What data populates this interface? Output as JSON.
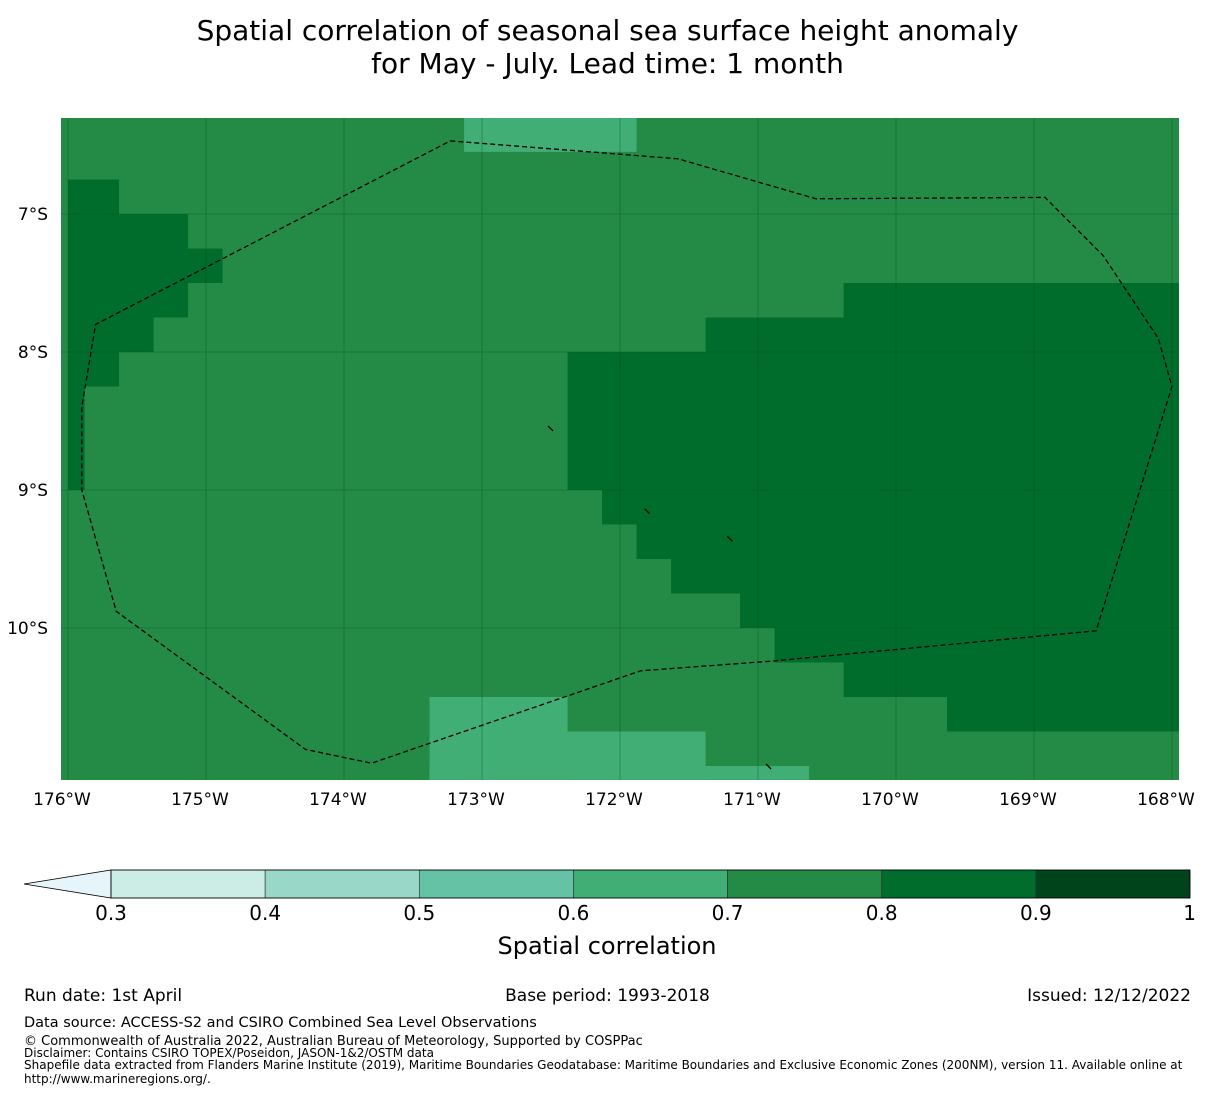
{
  "title_line1": "Spatial correlation of seasonal sea surface height anomaly",
  "title_line2": "for May - July. Lead time: 1 month",
  "map": {
    "lon_range": [
      -176,
      -167.9
    ],
    "lat_range": [
      -11.1,
      -6.3
    ],
    "lat_ticks": [
      {
        "value": -7,
        "label": "7°S"
      },
      {
        "value": -8,
        "label": "8°S"
      },
      {
        "value": -9,
        "label": "9°S"
      },
      {
        "value": -10,
        "label": "10°S"
      }
    ],
    "lon_ticks": [
      {
        "value": -176,
        "label": "176°W"
      },
      {
        "value": -175,
        "label": "175°W"
      },
      {
        "value": -174,
        "label": "174°W"
      },
      {
        "value": -173,
        "label": "173°W"
      },
      {
        "value": -172,
        "label": "172°W"
      },
      {
        "value": -171,
        "label": "171°W"
      },
      {
        "value": -170,
        "label": "170°W"
      },
      {
        "value": -169,
        "label": "169°W"
      },
      {
        "value": -168,
        "label": "168°W"
      }
    ],
    "gridlines": true,
    "background_value_class": "0.7-0.8",
    "regions": [
      {
        "class": "0.6-0.7",
        "lon": [
          -173.13,
          -171.88
        ],
        "lat": [
          -6.55,
          -6.3
        ]
      },
      {
        "class": "0.6-0.7",
        "lon": [
          -173.38,
          -172.38
        ],
        "lat": [
          -11.1,
          -10.5
        ]
      },
      {
        "class": "0.6-0.7",
        "lon": [
          -173.13,
          -171.38
        ],
        "lat": [
          -11.1,
          -10.75
        ]
      },
      {
        "class": "0.6-0.7",
        "lon": [
          -173.38,
          -170.63
        ],
        "lat": [
          -11.1,
          -11.0
        ]
      },
      {
        "class": "0.8-0.9",
        "lon": [
          -176.0,
          -175.63
        ],
        "lat": [
          -7.0,
          -6.75
        ]
      },
      {
        "class": "0.8-0.9",
        "lon": [
          -176.0,
          -175.13
        ],
        "lat": [
          -7.25,
          -7.0
        ]
      },
      {
        "class": "0.8-0.9",
        "lon": [
          -176.0,
          -174.88
        ],
        "lat": [
          -7.5,
          -7.25
        ]
      },
      {
        "class": "0.8-0.9",
        "lon": [
          -176.0,
          -175.13
        ],
        "lat": [
          -7.75,
          -7.5
        ]
      },
      {
        "class": "0.8-0.9",
        "lon": [
          -176.0,
          -175.38
        ],
        "lat": [
          -8.0,
          -7.75
        ]
      },
      {
        "class": "0.8-0.9",
        "lon": [
          -176.0,
          -175.63
        ],
        "lat": [
          -8.25,
          -8.0
        ]
      },
      {
        "class": "0.8-0.9",
        "lon": [
          -176.0,
          -175.88
        ],
        "lat": [
          -9.0,
          -8.25
        ]
      },
      {
        "class": "0.8-0.9",
        "lon": [
          -170.38,
          -167.9
        ],
        "lat": [
          -7.75,
          -7.5
        ]
      },
      {
        "class": "0.8-0.9",
        "lon": [
          -171.38,
          -167.9
        ],
        "lat": [
          -8.0,
          -7.75
        ]
      },
      {
        "class": "0.8-0.9",
        "lon": [
          -172.38,
          -167.9
        ],
        "lat": [
          -9.0,
          -8.0
        ]
      },
      {
        "class": "0.8-0.9",
        "lon": [
          -172.13,
          -167.9
        ],
        "lat": [
          -9.25,
          -9.0
        ]
      },
      {
        "class": "0.8-0.9",
        "lon": [
          -171.88,
          -167.9
        ],
        "lat": [
          -9.5,
          -9.25
        ]
      },
      {
        "class": "0.8-0.9",
        "lon": [
          -171.63,
          -167.9
        ],
        "lat": [
          -9.75,
          -9.5
        ]
      },
      {
        "class": "0.8-0.9",
        "lon": [
          -171.13,
          -167.9
        ],
        "lat": [
          -10.0,
          -9.75
        ]
      },
      {
        "class": "0.8-0.9",
        "lon": [
          -170.88,
          -167.9
        ],
        "lat": [
          -10.25,
          -10.0
        ]
      },
      {
        "class": "0.8-0.9",
        "lon": [
          -170.38,
          -167.9
        ],
        "lat": [
          -10.5,
          -10.25
        ]
      },
      {
        "class": "0.8-0.9",
        "lon": [
          -169.63,
          -167.9
        ],
        "lat": [
          -10.75,
          -10.5
        ]
      }
    ],
    "eez_boundary": [
      [
        -173.23,
        -6.47
      ],
      [
        -171.58,
        -6.6
      ],
      [
        -170.58,
        -6.89
      ],
      [
        -168.92,
        -6.88
      ],
      [
        -168.5,
        -7.3
      ],
      [
        -168.1,
        -7.9
      ],
      [
        -168.0,
        -8.25
      ],
      [
        -168.55,
        -10.02
      ],
      [
        -170.9,
        -10.24
      ],
      [
        -171.85,
        -10.31
      ],
      [
        -173.8,
        -10.98
      ],
      [
        -174.28,
        -10.88
      ],
      [
        -175.65,
        -9.88
      ],
      [
        -175.9,
        -9.0
      ],
      [
        -175.9,
        -8.4
      ],
      [
        -175.8,
        -7.8
      ],
      [
        -173.23,
        -6.47
      ]
    ],
    "islands": [
      [
        -172.5,
        -8.55
      ],
      [
        -171.8,
        -9.15
      ],
      [
        -171.2,
        -9.35
      ],
      [
        -170.92,
        -11.0
      ]
    ]
  },
  "colorbar": {
    "title": "Spatial correlation",
    "bounds": [
      0.3,
      0.4,
      0.5,
      0.6,
      0.7,
      0.8,
      0.9,
      1.0
    ],
    "tick_labels": [
      "0.3",
      "0.4",
      "0.5",
      "0.6",
      "0.7",
      "0.8",
      "0.9",
      "1"
    ],
    "colors": [
      "#ccece6",
      "#99d8c9",
      "#66c2a4",
      "#41ae76",
      "#238b45",
      "#006d2c",
      "#00441b"
    ],
    "extend_color": "#e5f5f9",
    "extend": "min"
  },
  "colors": {
    "0.6-0.7": "#41ae76",
    "0.7-0.8": "#238b45",
    "0.8-0.9": "#006d2c"
  },
  "footer": {
    "run_date": "Run date: 1st April",
    "base_period": "Base period: 1993-2018",
    "issued": "Issued: 12/12/2022",
    "data_source": "Data source: ACCESS-S2 and CSIRO Combined Sea Level Observations",
    "copyright": "© Commonwealth of Australia 2022, Australian Bureau of Meteorology, Supported by COSPPac",
    "disclaimer": "Disclaimer: Contains CSIRO TOPEX/Poseidon, JASON-1&2/OSTM data",
    "shapefile_line1": "Shapefile data extracted from Flanders Marine Institute (2019), Maritime Boundaries Geodatabase: Maritime Boundaries and Exclusive Economic Zones (200NM), version 11. Available online at",
    "shapefile_line2": "http://www.marineregions.org/."
  }
}
